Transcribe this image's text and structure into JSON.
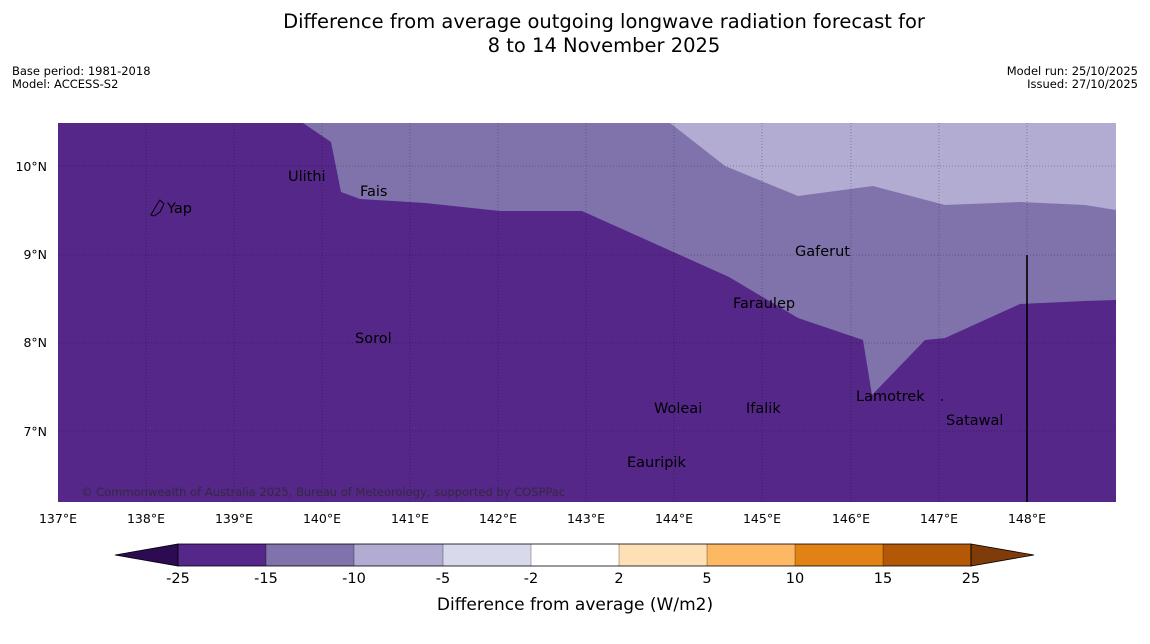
{
  "title": {
    "line1": "Difference from average outgoing longwave radiation forecast for",
    "line2": "8 to 14 November 2025"
  },
  "meta": {
    "base_period": "Base period: 1981-2018",
    "model": "Model: ACCESS-S2",
    "model_run": "Model run: 25/10/2025",
    "issued": "Issued: 27/10/2025"
  },
  "map": {
    "lon_labels": [
      "137°E",
      "138°E",
      "139°E",
      "140°E",
      "141°E",
      "142°E",
      "143°E",
      "144°E",
      "145°E",
      "146°E",
      "147°E",
      "148°E"
    ],
    "lat_labels": [
      "10°N",
      "9°N",
      "8°N",
      "7°N"
    ],
    "places": [
      {
        "name": "Yap",
        "lon": 138.25,
        "lat": 9.48
      },
      {
        "name": "Ulithi",
        "lon": 139.75,
        "lat": 9.87
      },
      {
        "name": "Fais",
        "lon": 140.5,
        "lat": 9.72
      },
      {
        "name": "Gaferut",
        "lon": 145.4,
        "lat": 9.03
      },
      {
        "name": "Faraulep",
        "lon": 144.7,
        "lat": 8.44
      },
      {
        "name": "Sorol",
        "lon": 140.4,
        "lat": 8.05
      },
      {
        "name": "Lamotrek",
        "lon": 146.2,
        "lat": 7.38
      },
      {
        "name": "Satawal",
        "lon": 147.1,
        "lat": 7.13
      },
      {
        "name": "Woleai",
        "lon": 143.9,
        "lat": 7.25
      },
      {
        "name": "Ifalik",
        "lon": 144.9,
        "lat": 7.25
      },
      {
        "name": "Eauripik",
        "lon": 143.6,
        "lat": 6.65
      }
    ],
    "copyright": "© Commonwealth of Australia 2025, Bureau of Meteorology, supported by COSPPac",
    "colors": {
      "lt_minus25": "#2d0b52",
      "minus25_to_minus15": "#542788",
      "minus15_to_minus10": "#8073ac",
      "minus10_to_minus5": "#b2abd2",
      "minus5_to_minus2": "#d8daeb",
      "minus2_to_2": "#ffffff",
      "2_to_5": "#fee0b6",
      "5_to_10": "#fdb863",
      "10_to_15": "#e08214",
      "15_to_25": "#b35806",
      "gt_25": "#7f3b08"
    }
  },
  "colorbar": {
    "labels": [
      "-25",
      "-15",
      "-10",
      "-5",
      "-2",
      "2",
      "5",
      "10",
      "15",
      "25"
    ],
    "title": "Difference from average (W/m2)"
  }
}
